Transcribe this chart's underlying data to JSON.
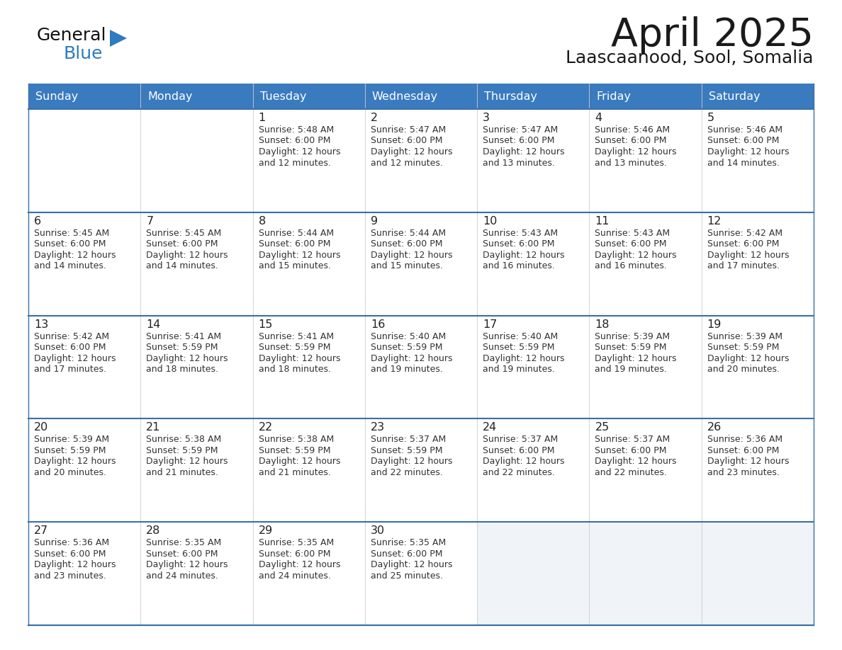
{
  "title": "April 2025",
  "subtitle": "Laascaanood, Sool, Somalia",
  "days_of_week": [
    "Sunday",
    "Monday",
    "Tuesday",
    "Wednesday",
    "Thursday",
    "Friday",
    "Saturday"
  ],
  "header_bg": "#3a7bbf",
  "header_text": "#ffffff",
  "row_bg": "#ffffff",
  "row_bg_last_empty": "#f0f4f8",
  "cell_border_color": "#3a6fa8",
  "day_num_color": "#222222",
  "info_color": "#333333",
  "title_color": "#1a1a1a",
  "subtitle_color": "#1a1a1a",
  "logo_general_color": "#111111",
  "logo_blue_color": "#2e7bbf",
  "logo_triangle_color": "#2e7bbf",
  "calendar": [
    [
      {
        "day": "",
        "sunrise": "",
        "sunset": "",
        "daylight": ""
      },
      {
        "day": "",
        "sunrise": "",
        "sunset": "",
        "daylight": ""
      },
      {
        "day": "1",
        "sunrise": "5:48 AM",
        "sunset": "6:00 PM",
        "daylight": "12 hours and 12 minutes."
      },
      {
        "day": "2",
        "sunrise": "5:47 AM",
        "sunset": "6:00 PM",
        "daylight": "12 hours and 12 minutes."
      },
      {
        "day": "3",
        "sunrise": "5:47 AM",
        "sunset": "6:00 PM",
        "daylight": "12 hours and 13 minutes."
      },
      {
        "day": "4",
        "sunrise": "5:46 AM",
        "sunset": "6:00 PM",
        "daylight": "12 hours and 13 minutes."
      },
      {
        "day": "5",
        "sunrise": "5:46 AM",
        "sunset": "6:00 PM",
        "daylight": "12 hours and 14 minutes."
      }
    ],
    [
      {
        "day": "6",
        "sunrise": "5:45 AM",
        "sunset": "6:00 PM",
        "daylight": "12 hours and 14 minutes."
      },
      {
        "day": "7",
        "sunrise": "5:45 AM",
        "sunset": "6:00 PM",
        "daylight": "12 hours and 14 minutes."
      },
      {
        "day": "8",
        "sunrise": "5:44 AM",
        "sunset": "6:00 PM",
        "daylight": "12 hours and 15 minutes."
      },
      {
        "day": "9",
        "sunrise": "5:44 AM",
        "sunset": "6:00 PM",
        "daylight": "12 hours and 15 minutes."
      },
      {
        "day": "10",
        "sunrise": "5:43 AM",
        "sunset": "6:00 PM",
        "daylight": "12 hours and 16 minutes."
      },
      {
        "day": "11",
        "sunrise": "5:43 AM",
        "sunset": "6:00 PM",
        "daylight": "12 hours and 16 minutes."
      },
      {
        "day": "12",
        "sunrise": "5:42 AM",
        "sunset": "6:00 PM",
        "daylight": "12 hours and 17 minutes."
      }
    ],
    [
      {
        "day": "13",
        "sunrise": "5:42 AM",
        "sunset": "6:00 PM",
        "daylight": "12 hours and 17 minutes."
      },
      {
        "day": "14",
        "sunrise": "5:41 AM",
        "sunset": "5:59 PM",
        "daylight": "12 hours and 18 minutes."
      },
      {
        "day": "15",
        "sunrise": "5:41 AM",
        "sunset": "5:59 PM",
        "daylight": "12 hours and 18 minutes."
      },
      {
        "day": "16",
        "sunrise": "5:40 AM",
        "sunset": "5:59 PM",
        "daylight": "12 hours and 19 minutes."
      },
      {
        "day": "17",
        "sunrise": "5:40 AM",
        "sunset": "5:59 PM",
        "daylight": "12 hours and 19 minutes."
      },
      {
        "day": "18",
        "sunrise": "5:39 AM",
        "sunset": "5:59 PM",
        "daylight": "12 hours and 19 minutes."
      },
      {
        "day": "19",
        "sunrise": "5:39 AM",
        "sunset": "5:59 PM",
        "daylight": "12 hours and 20 minutes."
      }
    ],
    [
      {
        "day": "20",
        "sunrise": "5:39 AM",
        "sunset": "5:59 PM",
        "daylight": "12 hours and 20 minutes."
      },
      {
        "day": "21",
        "sunrise": "5:38 AM",
        "sunset": "5:59 PM",
        "daylight": "12 hours and 21 minutes."
      },
      {
        "day": "22",
        "sunrise": "5:38 AM",
        "sunset": "5:59 PM",
        "daylight": "12 hours and 21 minutes."
      },
      {
        "day": "23",
        "sunrise": "5:37 AM",
        "sunset": "5:59 PM",
        "daylight": "12 hours and 22 minutes."
      },
      {
        "day": "24",
        "sunrise": "5:37 AM",
        "sunset": "6:00 PM",
        "daylight": "12 hours and 22 minutes."
      },
      {
        "day": "25",
        "sunrise": "5:37 AM",
        "sunset": "6:00 PM",
        "daylight": "12 hours and 22 minutes."
      },
      {
        "day": "26",
        "sunrise": "5:36 AM",
        "sunset": "6:00 PM",
        "daylight": "12 hours and 23 minutes."
      }
    ],
    [
      {
        "day": "27",
        "sunrise": "5:36 AM",
        "sunset": "6:00 PM",
        "daylight": "12 hours and 23 minutes."
      },
      {
        "day": "28",
        "sunrise": "5:35 AM",
        "sunset": "6:00 PM",
        "daylight": "12 hours and 24 minutes."
      },
      {
        "day": "29",
        "sunrise": "5:35 AM",
        "sunset": "6:00 PM",
        "daylight": "12 hours and 24 minutes."
      },
      {
        "day": "30",
        "sunrise": "5:35 AM",
        "sunset": "6:00 PM",
        "daylight": "12 hours and 25 minutes."
      },
      {
        "day": "",
        "sunrise": "",
        "sunset": "",
        "daylight": ""
      },
      {
        "day": "",
        "sunrise": "",
        "sunset": "",
        "daylight": ""
      },
      {
        "day": "",
        "sunrise": "",
        "sunset": "",
        "daylight": ""
      }
    ]
  ]
}
